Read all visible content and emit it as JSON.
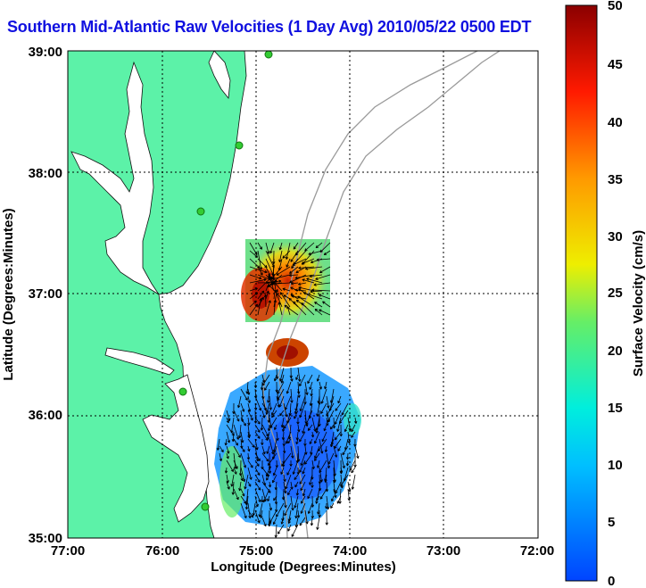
{
  "title": "Southern Mid-Atlantic Raw Velocities (1 Day Avg) 2010/05/22 0500 EDT",
  "axes": {
    "xlabel": "Longitude (Degrees:Minutes)",
    "ylabel": "Latitude (Degrees:Minutes)",
    "xticks": [
      "77:00",
      "76:00",
      "75:00",
      "74:00",
      "73:00",
      "72:00"
    ],
    "yticks": [
      "39:00",
      "38:00",
      "37:00",
      "36:00",
      "35:00"
    ]
  },
  "colorbar": {
    "label": "Surface Velocity (cm/s)",
    "ticks": [
      "50",
      "45",
      "40",
      "35",
      "30",
      "25",
      "20",
      "15",
      "10",
      "5",
      "0"
    ],
    "min": 0,
    "max": 50
  },
  "colors": {
    "land": "#5cf2a8",
    "title": "#1010e0",
    "station": "#33cc33",
    "isobath": "#9a9a9a"
  }
}
